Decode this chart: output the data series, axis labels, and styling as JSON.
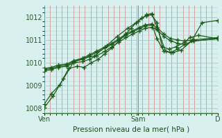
{
  "background_color": "#d8f0ee",
  "plot_bg_color": "#d8f0ee",
  "grid_major_color": "#a0c8c8",
  "grid_minor_color": "#e8a8a8",
  "line_color": "#1a5c1a",
  "marker_color": "#1a5c1a",
  "ylim": [
    1007.8,
    1012.5
  ],
  "yticks": [
    1008,
    1009,
    1010,
    1011,
    1012
  ],
  "xlabel": "Pression niveau de la mer( hPa )",
  "xtick_labels": [
    "Ven",
    "Sam",
    "D"
  ],
  "xtick_positions": [
    0.0,
    0.54,
    1.0
  ],
  "series": [
    [
      0.0,
      1008.2,
      0.04,
      1008.65,
      0.09,
      1009.05,
      0.14,
      1009.75,
      0.19,
      1009.85,
      0.23,
      1009.8,
      0.27,
      1010.0,
      0.31,
      1010.15,
      0.35,
      1010.4,
      0.39,
      1010.65,
      0.43,
      1010.95,
      0.47,
      1011.25,
      0.5,
      1011.5,
      0.53,
      1011.75,
      0.56,
      1011.95,
      0.59,
      1012.05,
      0.62,
      1012.1,
      0.65,
      1011.75,
      0.68,
      1010.7,
      0.72,
      1010.6,
      0.76,
      1010.7,
      0.81,
      1010.9,
      0.84,
      1011.1,
      0.89,
      1011.2,
      1.0,
      1011.05
    ],
    [
      0.0,
      1009.65,
      0.04,
      1009.7,
      0.08,
      1009.8,
      0.13,
      1009.85,
      0.17,
      1010.0,
      0.22,
      1010.05,
      0.26,
      1010.15,
      0.3,
      1010.3,
      0.35,
      1010.5,
      0.39,
      1010.7,
      0.43,
      1010.9,
      0.47,
      1011.1,
      0.51,
      1011.25,
      0.55,
      1011.4,
      0.58,
      1011.5,
      0.62,
      1011.55,
      0.65,
      1011.45,
      0.69,
      1011.15,
      0.73,
      1010.95,
      0.77,
      1010.85,
      0.81,
      1010.8,
      0.86,
      1010.95,
      1.0,
      1011.05
    ],
    [
      0.0,
      1009.7,
      0.04,
      1009.75,
      0.08,
      1009.85,
      0.13,
      1009.9,
      0.17,
      1010.05,
      0.22,
      1010.15,
      0.26,
      1010.3,
      0.3,
      1010.45,
      0.35,
      1010.65,
      0.39,
      1010.8,
      0.43,
      1011.0,
      0.47,
      1011.2,
      0.51,
      1011.35,
      0.55,
      1011.5,
      0.58,
      1011.6,
      0.62,
      1011.65,
      0.65,
      1011.55,
      0.69,
      1011.25,
      0.73,
      1011.05,
      0.77,
      1011.0,
      0.81,
      1010.95,
      0.86,
      1011.0,
      1.0,
      1011.1
    ],
    [
      0.0,
      1009.75,
      0.04,
      1009.8,
      0.08,
      1009.9,
      0.13,
      1009.95,
      0.17,
      1010.1,
      0.22,
      1010.2,
      0.26,
      1010.35,
      0.3,
      1010.5,
      0.35,
      1010.7,
      0.39,
      1010.85,
      0.43,
      1011.05,
      0.47,
      1011.25,
      0.51,
      1011.4,
      0.55,
      1011.55,
      0.58,
      1011.65,
      0.62,
      1011.7,
      0.65,
      1011.05,
      0.69,
      1010.5,
      0.73,
      1010.45,
      0.77,
      1010.6,
      0.81,
      1010.8,
      0.86,
      1010.95,
      1.0,
      1011.05
    ],
    [
      0.0,
      1008.05,
      0.05,
      1008.55,
      0.11,
      1009.3,
      0.17,
      1010.05,
      0.23,
      1010.2,
      0.29,
      1010.3,
      0.36,
      1010.75,
      0.42,
      1011.15,
      0.48,
      1011.5,
      0.54,
      1011.8,
      0.59,
      1012.1,
      0.62,
      1012.15,
      0.65,
      1011.55,
      0.7,
      1010.5,
      0.74,
      1010.45,
      0.79,
      1010.55,
      0.85,
      1010.95,
      0.91,
      1011.75,
      1.0,
      1011.85
    ]
  ]
}
